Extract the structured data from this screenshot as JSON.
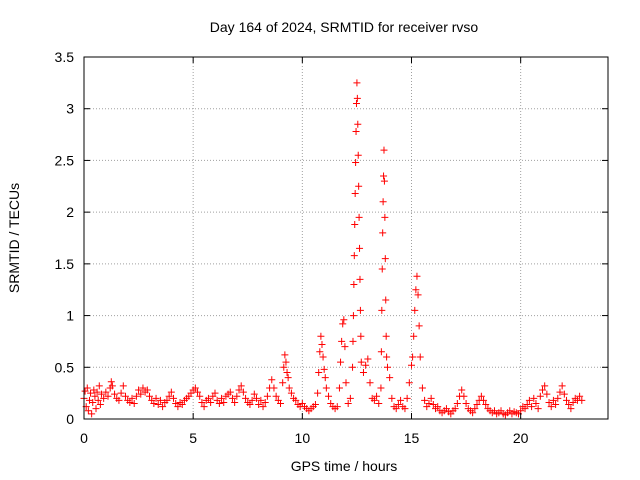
{
  "chart_data": {
    "type": "scatter",
    "title": "Day 164 of 2024, SRMTID for receiver rvso",
    "xlabel": "GPS time / hours",
    "ylabel": "SRMTID / TECUs",
    "xlim": [
      0,
      24
    ],
    "ylim": [
      0,
      3.5
    ],
    "xticks": [
      0,
      5,
      10,
      15,
      20
    ],
    "yticks": [
      0,
      0.5,
      1,
      1.5,
      2,
      2.5,
      3,
      3.5
    ],
    "xtick_labels": [
      "0",
      "5",
      "10",
      "15",
      "20"
    ],
    "ytick_labels": [
      "0",
      "0.5",
      "1",
      "1.5",
      "2",
      "2.5",
      "3",
      "3.5"
    ],
    "grid": true,
    "marker": "+",
    "series": [
      {
        "name": "SRMTID",
        "color": "#ff0000",
        "points": [
          [
            0.0,
            0.2
          ],
          [
            0.05,
            0.27
          ],
          [
            0.1,
            0.12
          ],
          [
            0.15,
            0.3
          ],
          [
            0.2,
            0.08
          ],
          [
            0.25,
            0.18
          ],
          [
            0.3,
            0.25
          ],
          [
            0.35,
            0.05
          ],
          [
            0.4,
            0.16
          ],
          [
            0.45,
            0.28
          ],
          [
            0.5,
            0.22
          ],
          [
            0.55,
            0.1
          ],
          [
            0.6,
            0.26
          ],
          [
            0.65,
            0.18
          ],
          [
            0.7,
            0.32
          ],
          [
            0.75,
            0.14
          ],
          [
            0.8,
            0.24
          ],
          [
            0.9,
            0.2
          ],
          [
            1.0,
            0.26
          ],
          [
            1.1,
            0.22
          ],
          [
            1.2,
            0.3
          ],
          [
            1.25,
            0.36
          ],
          [
            1.3,
            0.32
          ],
          [
            1.4,
            0.24
          ],
          [
            1.5,
            0.2
          ],
          [
            1.6,
            0.18
          ],
          [
            1.7,
            0.25
          ],
          [
            1.8,
            0.32
          ],
          [
            1.9,
            0.22
          ],
          [
            2.0,
            0.18
          ],
          [
            2.1,
            0.16
          ],
          [
            2.2,
            0.2
          ],
          [
            2.3,
            0.15
          ],
          [
            2.4,
            0.22
          ],
          [
            2.5,
            0.28
          ],
          [
            2.6,
            0.24
          ],
          [
            2.7,
            0.3
          ],
          [
            2.8,
            0.26
          ],
          [
            2.9,
            0.28
          ],
          [
            3.0,
            0.22
          ],
          [
            3.1,
            0.18
          ],
          [
            3.2,
            0.15
          ],
          [
            3.3,
            0.2
          ],
          [
            3.4,
            0.14
          ],
          [
            3.5,
            0.18
          ],
          [
            3.6,
            0.12
          ],
          [
            3.7,
            0.16
          ],
          [
            3.8,
            0.18
          ],
          [
            3.9,
            0.22
          ],
          [
            4.0,
            0.26
          ],
          [
            4.1,
            0.2
          ],
          [
            4.2,
            0.15
          ],
          [
            4.3,
            0.12
          ],
          [
            4.4,
            0.16
          ],
          [
            4.5,
            0.14
          ],
          [
            4.6,
            0.18
          ],
          [
            4.7,
            0.2
          ],
          [
            4.8,
            0.22
          ],
          [
            4.9,
            0.25
          ],
          [
            5.0,
            0.28
          ],
          [
            5.1,
            0.3
          ],
          [
            5.2,
            0.26
          ],
          [
            5.3,
            0.22
          ],
          [
            5.4,
            0.16
          ],
          [
            5.5,
            0.12
          ],
          [
            5.6,
            0.18
          ],
          [
            5.7,
            0.2
          ],
          [
            5.8,
            0.16
          ],
          [
            5.9,
            0.22
          ],
          [
            6.0,
            0.25
          ],
          [
            6.1,
            0.18
          ],
          [
            6.2,
            0.15
          ],
          [
            6.3,
            0.2
          ],
          [
            6.4,
            0.16
          ],
          [
            6.5,
            0.22
          ],
          [
            6.6,
            0.24
          ],
          [
            6.7,
            0.26
          ],
          [
            6.8,
            0.2
          ],
          [
            6.9,
            0.16
          ],
          [
            7.0,
            0.22
          ],
          [
            7.1,
            0.28
          ],
          [
            7.2,
            0.32
          ],
          [
            7.3,
            0.26
          ],
          [
            7.4,
            0.2
          ],
          [
            7.5,
            0.16
          ],
          [
            7.6,
            0.14
          ],
          [
            7.7,
            0.18
          ],
          [
            7.8,
            0.24
          ],
          [
            7.9,
            0.2
          ],
          [
            8.0,
            0.14
          ],
          [
            8.1,
            0.18
          ],
          [
            8.2,
            0.12
          ],
          [
            8.3,
            0.16
          ],
          [
            8.4,
            0.22
          ],
          [
            8.5,
            0.3
          ],
          [
            8.6,
            0.38
          ],
          [
            8.7,
            0.3
          ],
          [
            8.8,
            0.22
          ],
          [
            8.9,
            0.18
          ],
          [
            9.0,
            0.15
          ],
          [
            9.1,
            0.35
          ],
          [
            9.15,
            0.5
          ],
          [
            9.2,
            0.62
          ],
          [
            9.25,
            0.55
          ],
          [
            9.3,
            0.45
          ],
          [
            9.35,
            0.4
          ],
          [
            9.4,
            0.3
          ],
          [
            9.5,
            0.25
          ],
          [
            9.6,
            0.2
          ],
          [
            9.7,
            0.18
          ],
          [
            9.8,
            0.14
          ],
          [
            9.9,
            0.12
          ],
          [
            10.0,
            0.15
          ],
          [
            10.1,
            0.12
          ],
          [
            10.2,
            0.1
          ],
          [
            10.3,
            0.08
          ],
          [
            10.4,
            0.1
          ],
          [
            10.5,
            0.12
          ],
          [
            10.6,
            0.14
          ],
          [
            10.7,
            0.25
          ],
          [
            10.75,
            0.45
          ],
          [
            10.8,
            0.65
          ],
          [
            10.85,
            0.8
          ],
          [
            10.9,
            0.72
          ],
          [
            10.95,
            0.6
          ],
          [
            11.0,
            0.48
          ],
          [
            11.05,
            0.4
          ],
          [
            11.1,
            0.3
          ],
          [
            11.2,
            0.22
          ],
          [
            11.3,
            0.15
          ],
          [
            11.4,
            0.12
          ],
          [
            11.5,
            0.1
          ],
          [
            11.6,
            0.12
          ],
          [
            11.7,
            0.3
          ],
          [
            11.75,
            0.55
          ],
          [
            11.8,
            0.75
          ],
          [
            11.85,
            0.92
          ],
          [
            11.9,
            0.96
          ],
          [
            11.95,
            0.7
          ],
          [
            12.0,
            0.35
          ],
          [
            12.1,
            0.15
          ],
          [
            12.2,
            0.2
          ],
          [
            12.3,
            0.5
          ],
          [
            12.32,
            0.75
          ],
          [
            12.34,
            1.0
          ],
          [
            12.36,
            1.3
          ],
          [
            12.38,
            1.58
          ],
          [
            12.4,
            1.88
          ],
          [
            12.42,
            2.18
          ],
          [
            12.44,
            2.48
          ],
          [
            12.46,
            2.78
          ],
          [
            12.48,
            3.05
          ],
          [
            12.5,
            3.25
          ],
          [
            12.52,
            3.1
          ],
          [
            12.54,
            2.85
          ],
          [
            12.56,
            2.55
          ],
          [
            12.58,
            2.25
          ],
          [
            12.6,
            1.95
          ],
          [
            12.62,
            1.65
          ],
          [
            12.64,
            1.35
          ],
          [
            12.66,
            1.05
          ],
          [
            12.68,
            0.8
          ],
          [
            12.7,
            0.55
          ],
          [
            12.8,
            0.45
          ],
          [
            12.9,
            0.52
          ],
          [
            13.0,
            0.58
          ],
          [
            13.1,
            0.35
          ],
          [
            13.2,
            0.2
          ],
          [
            13.3,
            0.18
          ],
          [
            13.4,
            0.22
          ],
          [
            13.5,
            0.15
          ],
          [
            13.6,
            0.3
          ],
          [
            13.62,
            0.65
          ],
          [
            13.64,
            1.05
          ],
          [
            13.66,
            1.45
          ],
          [
            13.68,
            1.8
          ],
          [
            13.7,
            2.1
          ],
          [
            13.72,
            2.35
          ],
          [
            13.74,
            2.6
          ],
          [
            13.76,
            2.3
          ],
          [
            13.78,
            1.95
          ],
          [
            13.8,
            1.55
          ],
          [
            13.82,
            1.15
          ],
          [
            13.84,
            0.8
          ],
          [
            13.86,
            0.6
          ],
          [
            13.9,
            0.5
          ],
          [
            14.0,
            0.4
          ],
          [
            14.1,
            0.2
          ],
          [
            14.2,
            0.12
          ],
          [
            14.3,
            0.1
          ],
          [
            14.4,
            0.14
          ],
          [
            14.5,
            0.18
          ],
          [
            14.6,
            0.12
          ],
          [
            14.7,
            0.1
          ],
          [
            14.8,
            0.2
          ],
          [
            14.9,
            0.35
          ],
          [
            15.0,
            0.52
          ],
          [
            15.05,
            0.6
          ],
          [
            15.1,
            0.8
          ],
          [
            15.15,
            1.05
          ],
          [
            15.2,
            1.25
          ],
          [
            15.25,
            1.38
          ],
          [
            15.3,
            1.2
          ],
          [
            15.35,
            0.9
          ],
          [
            15.4,
            0.6
          ],
          [
            15.5,
            0.3
          ],
          [
            15.6,
            0.18
          ],
          [
            15.7,
            0.12
          ],
          [
            15.8,
            0.15
          ],
          [
            15.9,
            0.2
          ],
          [
            16.0,
            0.14
          ],
          [
            16.1,
            0.1
          ],
          [
            16.2,
            0.12
          ],
          [
            16.3,
            0.08
          ],
          [
            16.4,
            0.06
          ],
          [
            16.5,
            0.08
          ],
          [
            16.6,
            0.1
          ],
          [
            16.7,
            0.07
          ],
          [
            16.8,
            0.05
          ],
          [
            16.9,
            0.08
          ],
          [
            17.0,
            0.1
          ],
          [
            17.1,
            0.15
          ],
          [
            17.2,
            0.22
          ],
          [
            17.3,
            0.28
          ],
          [
            17.4,
            0.22
          ],
          [
            17.5,
            0.15
          ],
          [
            17.6,
            0.1
          ],
          [
            17.7,
            0.08
          ],
          [
            17.8,
            0.06
          ],
          [
            17.9,
            0.1
          ],
          [
            18.0,
            0.14
          ],
          [
            18.1,
            0.18
          ],
          [
            18.2,
            0.22
          ],
          [
            18.3,
            0.18
          ],
          [
            18.4,
            0.14
          ],
          [
            18.5,
            0.1
          ],
          [
            18.6,
            0.08
          ],
          [
            18.7,
            0.06
          ],
          [
            18.8,
            0.08
          ],
          [
            18.9,
            0.05
          ],
          [
            19.0,
            0.06
          ],
          [
            19.1,
            0.08
          ],
          [
            19.2,
            0.05
          ],
          [
            19.3,
            0.04
          ],
          [
            19.4,
            0.06
          ],
          [
            19.5,
            0.08
          ],
          [
            19.6,
            0.05
          ],
          [
            19.7,
            0.07
          ],
          [
            19.8,
            0.06
          ],
          [
            19.9,
            0.05
          ],
          [
            20.0,
            0.08
          ],
          [
            20.1,
            0.12
          ],
          [
            20.2,
            0.1
          ],
          [
            20.3,
            0.14
          ],
          [
            20.4,
            0.18
          ],
          [
            20.5,
            0.12
          ],
          [
            20.6,
            0.2
          ],
          [
            20.7,
            0.15
          ],
          [
            20.8,
            0.1
          ],
          [
            20.9,
            0.22
          ],
          [
            21.0,
            0.28
          ],
          [
            21.1,
            0.32
          ],
          [
            21.2,
            0.24
          ],
          [
            21.3,
            0.16
          ],
          [
            21.4,
            0.12
          ],
          [
            21.5,
            0.18
          ],
          [
            21.6,
            0.14
          ],
          [
            21.7,
            0.2
          ],
          [
            21.8,
            0.26
          ],
          [
            21.9,
            0.32
          ],
          [
            22.0,
            0.24
          ],
          [
            22.1,
            0.18
          ],
          [
            22.2,
            0.14
          ],
          [
            22.3,
            0.1
          ],
          [
            22.4,
            0.16
          ],
          [
            22.5,
            0.2
          ],
          [
            22.6,
            0.18
          ],
          [
            22.7,
            0.22
          ],
          [
            22.8,
            0.18
          ]
        ]
      }
    ]
  }
}
